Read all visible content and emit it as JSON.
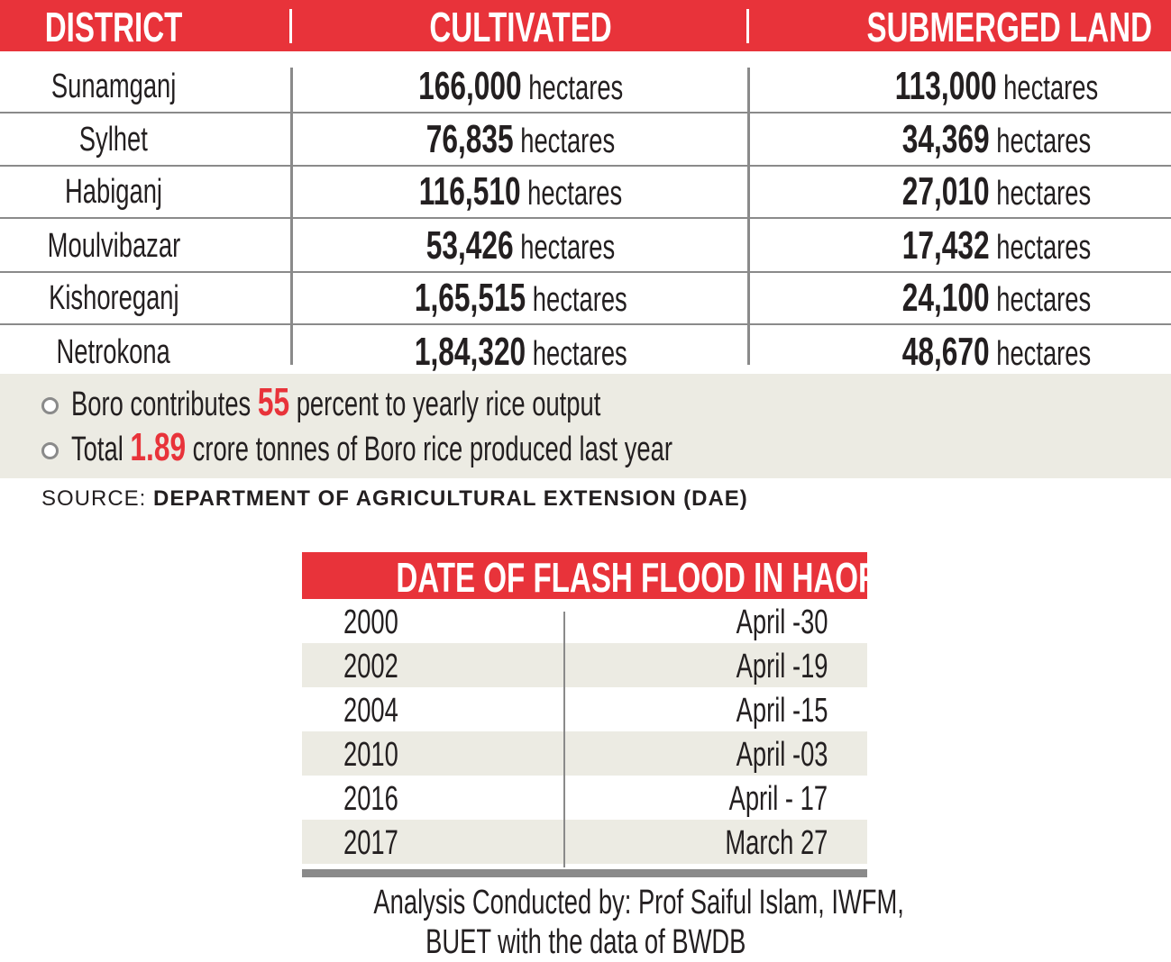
{
  "main_table": {
    "headers": [
      "DISTRICT",
      "CULTIVATED",
      "SUBMERGED LAND"
    ],
    "unit": "hectares",
    "rows": [
      {
        "district": "Sunamganj",
        "cultivated": "166,000",
        "submerged": "113,000"
      },
      {
        "district": "Sylhet",
        "cultivated": "76,835",
        "submerged": "34,369"
      },
      {
        "district": "Habiganj",
        "cultivated": "116,510",
        "submerged": "27,010"
      },
      {
        "district": "Moulvibazar",
        "cultivated": "53,426",
        "submerged": "17,432"
      },
      {
        "district": "Kishoreganj",
        "cultivated": "1,65,515",
        "submerged": "24,100"
      },
      {
        "district": "Netrokona",
        "cultivated": "1,84,320",
        "submerged": "48,670"
      }
    ]
  },
  "notes": [
    {
      "before": "Boro contributes",
      "highlight": "55",
      "after": "percent to yearly rice output"
    },
    {
      "before": "Total",
      "highlight": "1.89",
      "after": "crore tonnes of Boro rice produced last year"
    }
  ],
  "source": {
    "label": "SOURCE:",
    "value": "DEPARTMENT OF AGRICULTURAL EXTENSION (DAE)"
  },
  "flood_table": {
    "title": "DATE OF FLASH FLOOD IN HAOR",
    "rows": [
      {
        "year": "2000",
        "date": "April -30"
      },
      {
        "year": "2002",
        "date": "April -19"
      },
      {
        "year": "2004",
        "date": "April -15"
      },
      {
        "year": "2010",
        "date": "April -03"
      },
      {
        "year": "2016",
        "date": "April - 17"
      },
      {
        "year": "2017",
        "date": "March 27"
      }
    ]
  },
  "credit": [
    "Analysis Conducted by: Prof Saiful Islam, IWFM,",
    "BUET with the data of BWDB"
  ],
  "colors": {
    "accent": "#e8333a",
    "band": "#ecebe3",
    "rule": "#8a8a8a"
  }
}
